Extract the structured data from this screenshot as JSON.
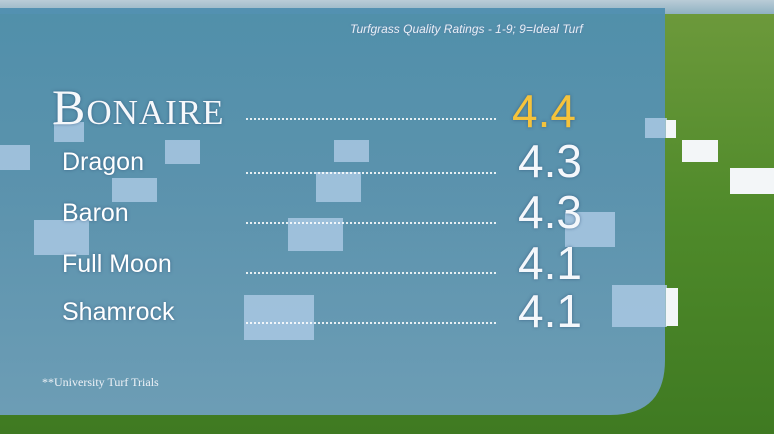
{
  "subtitle": "Turfgrass Quality Ratings  -  1-9; 9=Ideal Turf",
  "ratings": [
    {
      "name": "Bonaire",
      "score": 4.4
    },
    {
      "name": "Dragon",
      "score": 4.3
    },
    {
      "name": "Baron",
      "score": 4.3
    },
    {
      "name": "Full Moon",
      "score": 4.1
    },
    {
      "name": "Shamrock",
      "score": 4.1
    }
  ],
  "footnote": "**University Turf Trials"
}
